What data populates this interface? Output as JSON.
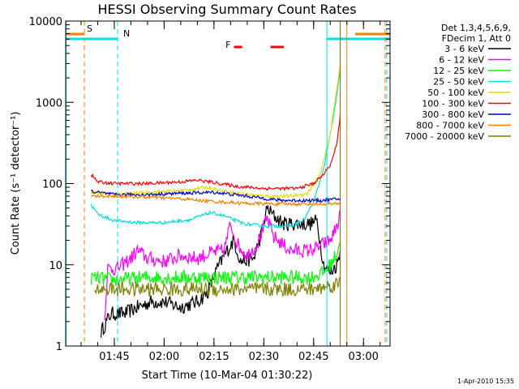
{
  "chart_data": {
    "type": "line",
    "title": "HESSI Observing Summary Count Rates",
    "xlabel": "Start Time (10-Mar-04 01:30:22)",
    "ylabel": "Count Rate (s⁻¹ detector⁻¹)",
    "y_scale": "log",
    "ylim": [
      1,
      10000
    ],
    "xlim": [
      "01:30:22",
      "03:08:00"
    ],
    "x_ticks": [
      "01:45",
      "02:00",
      "02:15",
      "02:30",
      "02:45",
      "03:00"
    ],
    "y_ticks": [
      "1",
      "10",
      "100",
      "1000",
      "10000"
    ],
    "grid": false,
    "legend_position": "right",
    "legend_header": [
      "Det 1,3,4,5,6,9,",
      "FDecim 1, Att 0"
    ],
    "timestamp": "1-Apr-2010 15:35",
    "markers": [
      {
        "label": "S",
        "color": "#ff7f00",
        "time": "01:35:00",
        "bars": [
          [
            "01:30:22",
            "01:36:00"
          ],
          [
            "02:57:30",
            "03:08:00"
          ]
        ]
      },
      {
        "label": "N",
        "color": "#00e0e0",
        "time": "01:46:00",
        "bars": [
          [
            "01:30:22",
            "01:46:00"
          ],
          [
            "02:49:00",
            "03:08:00"
          ]
        ]
      },
      {
        "label": "F",
        "color": "#ff0000",
        "time": "02:20:30",
        "bars": [
          [
            "02:21:00",
            "02:23:30"
          ],
          [
            "02:32:00",
            "02:36:00"
          ]
        ]
      }
    ],
    "vlines": [
      {
        "time": "01:30:30",
        "color": "#00e0e0",
        "style": "solid"
      },
      {
        "time": "01:36:00",
        "color": "#ff7f00",
        "style": "dashed"
      },
      {
        "time": "01:46:00",
        "color": "#00e0e0",
        "style": "dashed"
      },
      {
        "time": "02:49:00",
        "color": "#00e0e0",
        "style": "solid"
      },
      {
        "time": "02:53:00",
        "color": "#a06000",
        "style": "solid"
      },
      {
        "time": "02:55:00",
        "color": "#ff7f00",
        "style": "solid"
      },
      {
        "time": "03:06:30",
        "color": "#ff7f00",
        "style": "dashed"
      },
      {
        "time": "03:07:00",
        "color": "#00e0e0",
        "style": "dashed"
      }
    ],
    "series": [
      {
        "name": "3 - 6 keV",
        "color": "#000000",
        "start": "01:41:00",
        "end": "02:53:30",
        "points": [
          [
            "01:41",
            1.5
          ],
          [
            "01:44",
            2.5
          ],
          [
            "01:48",
            2.5
          ],
          [
            "01:52",
            3
          ],
          [
            "01:56",
            3.5
          ],
          [
            "02:00",
            3.5
          ],
          [
            "02:05",
            3
          ],
          [
            "02:10",
            3.5
          ],
          [
            "02:13",
            4.5
          ],
          [
            "02:16",
            9
          ],
          [
            "02:19",
            15
          ],
          [
            "02:21",
            20
          ],
          [
            "02:23",
            11
          ],
          [
            "02:27",
            12
          ],
          [
            "02:29",
            22
          ],
          [
            "02:31",
            50
          ],
          [
            "02:33",
            40
          ],
          [
            "02:36",
            32
          ],
          [
            "02:40",
            32
          ],
          [
            "02:44",
            32
          ],
          [
            "02:46",
            35
          ],
          [
            "02:48",
            10
          ],
          [
            "02:50",
            8
          ],
          [
            "02:52",
            10
          ],
          [
            "02:53",
            15
          ]
        ]
      },
      {
        "name": "6 - 12 keV",
        "color": "#ff00ff",
        "start": "01:42:00",
        "end": "02:53:30",
        "points": [
          [
            "01:42",
            2
          ],
          [
            "01:43",
            9
          ],
          [
            "01:46",
            9
          ],
          [
            "01:50",
            12
          ],
          [
            "01:52",
            15
          ],
          [
            "01:55",
            12
          ],
          [
            "02:00",
            11
          ],
          [
            "02:05",
            13
          ],
          [
            "02:10",
            12
          ],
          [
            "02:14",
            14
          ],
          [
            "02:18",
            15
          ],
          [
            "02:20",
            32
          ],
          [
            "02:22",
            18
          ],
          [
            "02:25",
            13
          ],
          [
            "02:28",
            18
          ],
          [
            "02:31",
            37
          ],
          [
            "02:33",
            22
          ],
          [
            "02:38",
            15
          ],
          [
            "02:43",
            15
          ],
          [
            "02:46",
            16
          ],
          [
            "02:48",
            18
          ],
          [
            "02:50",
            20
          ],
          [
            "02:52",
            30
          ],
          [
            "02:53",
            40
          ]
        ]
      },
      {
        "name": "12 - 25 keV",
        "color": "#00ff00",
        "start": "01:38:00",
        "end": "02:53:30",
        "points": [
          [
            "01:38",
            7
          ],
          [
            "01:45",
            6.5
          ],
          [
            "01:55",
            7
          ],
          [
            "02:05",
            7
          ],
          [
            "02:15",
            7
          ],
          [
            "02:25",
            7
          ],
          [
            "02:35",
            7
          ],
          [
            "02:44",
            7
          ],
          [
            "02:48",
            8
          ],
          [
            "02:50",
            10
          ],
          [
            "02:52",
            14
          ],
          [
            "02:53",
            20
          ]
        ]
      },
      {
        "name": "25 - 50 keV",
        "color": "#00e0e0",
        "start": "01:38:00",
        "end": "02:53:30",
        "points": [
          [
            "01:38",
            55
          ],
          [
            "01:40",
            42
          ],
          [
            "01:45",
            35
          ],
          [
            "01:52",
            33
          ],
          [
            "02:00",
            33
          ],
          [
            "02:08",
            36
          ],
          [
            "02:14",
            44
          ],
          [
            "02:18",
            40
          ],
          [
            "02:24",
            32
          ],
          [
            "02:30",
            30
          ],
          [
            "02:38",
            30
          ],
          [
            "02:42",
            35
          ],
          [
            "02:45",
            60
          ],
          [
            "02:48",
            150
          ],
          [
            "02:50",
            400
          ],
          [
            "02:52",
            1200
          ],
          [
            "02:53",
            2500
          ]
        ]
      },
      {
        "name": "50 - 100 keV",
        "color": "#e0e000",
        "start": "01:38:00",
        "end": "02:53:30",
        "points": [
          [
            "01:38",
            78
          ],
          [
            "01:45",
            73
          ],
          [
            "01:55",
            78
          ],
          [
            "02:05",
            82
          ],
          [
            "02:13",
            90
          ],
          [
            "02:20",
            78
          ],
          [
            "02:30",
            70
          ],
          [
            "02:38",
            70
          ],
          [
            "02:43",
            75
          ],
          [
            "02:47",
            130
          ],
          [
            "02:50",
            400
          ],
          [
            "02:52",
            1500
          ],
          [
            "02:53",
            3000
          ]
        ]
      },
      {
        "name": "100 - 300 keV",
        "color": "#ff0000",
        "start": "01:38:00",
        "end": "02:53:30",
        "points": [
          [
            "01:38",
            130
          ],
          [
            "01:40",
            105
          ],
          [
            "01:45",
            100
          ],
          [
            "01:55",
            100
          ],
          [
            "02:05",
            105
          ],
          [
            "02:10",
            110
          ],
          [
            "02:15",
            103
          ],
          [
            "02:22",
            92
          ],
          [
            "02:30",
            87
          ],
          [
            "02:40",
            87
          ],
          [
            "02:45",
            100
          ],
          [
            "02:48",
            130
          ],
          [
            "02:50",
            170
          ],
          [
            "02:52",
            300
          ],
          [
            "02:53",
            700
          ]
        ]
      },
      {
        "name": "300 - 800 keV",
        "color": "#0000cc",
        "start": "01:38:00",
        "end": "02:53:30",
        "points": [
          [
            "01:38",
            80
          ],
          [
            "01:45",
            73
          ],
          [
            "01:55",
            73
          ],
          [
            "02:05",
            76
          ],
          [
            "02:15",
            78
          ],
          [
            "02:25",
            70
          ],
          [
            "02:35",
            62
          ],
          [
            "02:42",
            62
          ],
          [
            "02:48",
            62
          ],
          [
            "02:53",
            65
          ]
        ]
      },
      {
        "name": "800 - 7000 keV",
        "color": "#ff7f00",
        "start": "01:38:00",
        "end": "02:53:30",
        "points": [
          [
            "01:38",
            70
          ],
          [
            "01:45",
            70
          ],
          [
            "01:55",
            68
          ],
          [
            "02:05",
            65
          ],
          [
            "02:15",
            60
          ],
          [
            "02:25",
            57
          ],
          [
            "02:35",
            56
          ],
          [
            "02:45",
            56
          ],
          [
            "02:53",
            56
          ]
        ]
      },
      {
        "name": "7000 - 20000 keV",
        "color": "#808000",
        "start": "01:39:00",
        "end": "02:53:30",
        "points": [
          [
            "01:39",
            5
          ],
          [
            "01:45",
            5
          ],
          [
            "01:55",
            5
          ],
          [
            "02:05",
            5
          ],
          [
            "02:15",
            5
          ],
          [
            "02:25",
            5
          ],
          [
            "02:35",
            5
          ],
          [
            "02:45",
            5
          ],
          [
            "02:50",
            5.5
          ],
          [
            "02:53",
            6
          ]
        ]
      }
    ]
  }
}
